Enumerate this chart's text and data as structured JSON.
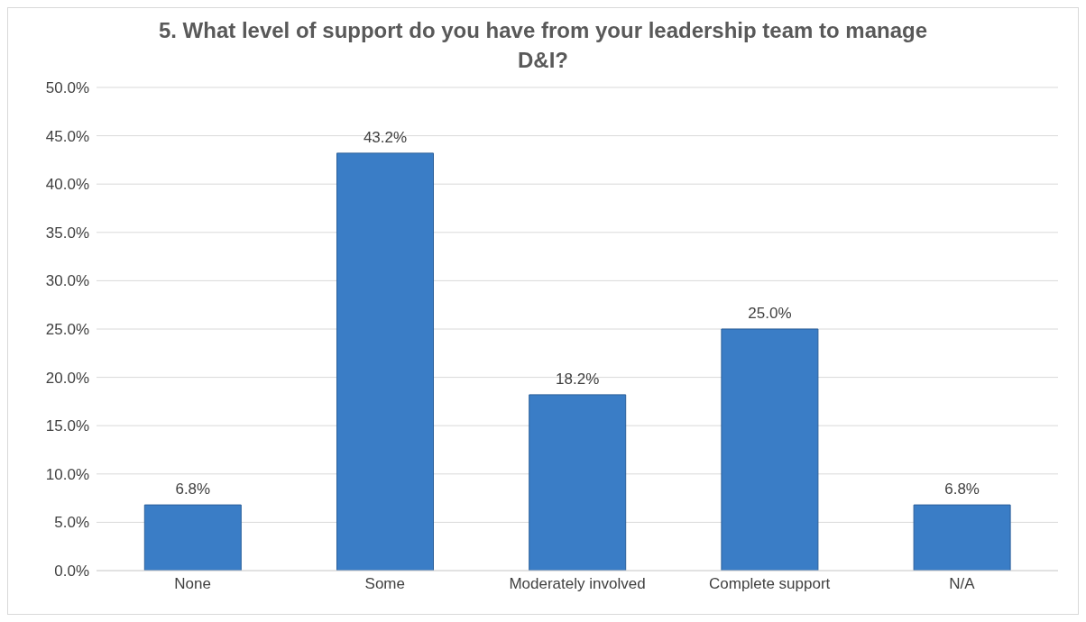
{
  "chart_data": {
    "type": "bar",
    "title": "5. What level of support do you have from your leadership team to manage D&I?",
    "categories": [
      "None",
      "Some",
      "Moderately involved",
      "Complete support",
      "N/A"
    ],
    "values": [
      6.8,
      43.2,
      18.2,
      25.0,
      6.8
    ],
    "value_labels": [
      "6.8%",
      "43.2%",
      "18.2%",
      "25.0%",
      "6.8%"
    ],
    "color": "#3a7dc6",
    "ylim": [
      0,
      50
    ],
    "yticks": [
      {
        "value": 0,
        "label": "0.0%"
      },
      {
        "value": 5,
        "label": "5.0%"
      },
      {
        "value": 10,
        "label": "10.0%"
      },
      {
        "value": 15,
        "label": "15.0%"
      },
      {
        "value": 20,
        "label": "20.0%"
      },
      {
        "value": 25,
        "label": "25.0%"
      },
      {
        "value": 30,
        "label": "30.0%"
      },
      {
        "value": 35,
        "label": "35.0%"
      },
      {
        "value": 40,
        "label": "40.0%"
      },
      {
        "value": 45,
        "label": "45.0%"
      },
      {
        "value": 50,
        "label": "50.0%"
      }
    ],
    "grid": "y",
    "legend": false
  }
}
